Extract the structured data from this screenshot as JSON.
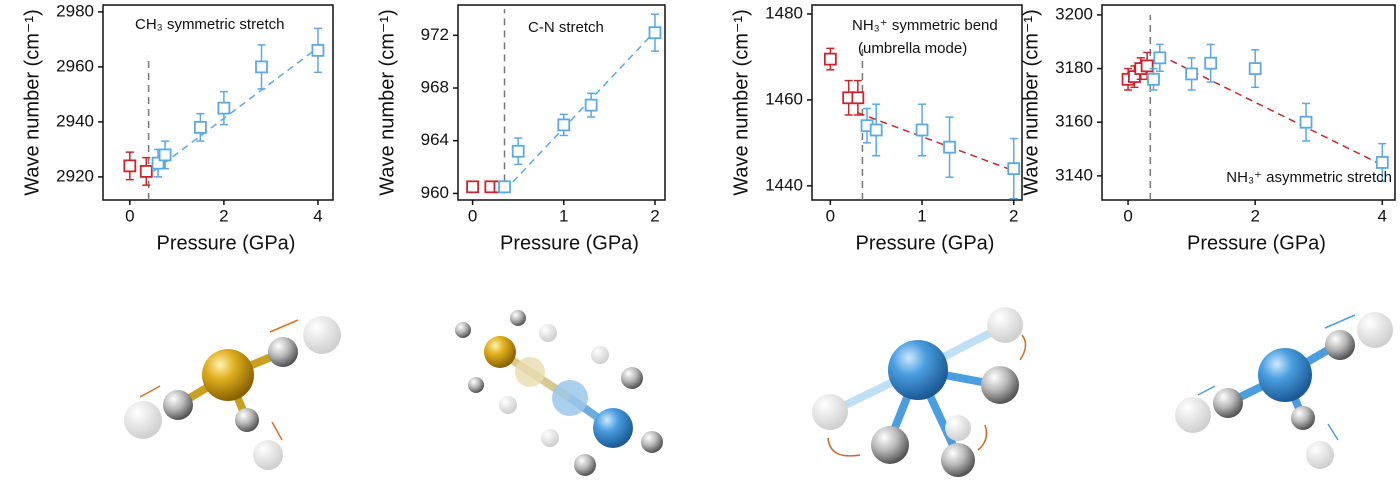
{
  "chart_data": [
    {
      "type": "scatter",
      "annotations": [
        "CH₃ symmetric stretch"
      ],
      "xlabel": "Pressure (GPa)",
      "ylabel": "Wave number (cm⁻¹)",
      "xlim": [
        -0.57,
        4.32
      ],
      "ylim": [
        2911.6,
        2982.5
      ],
      "xticks": [
        0,
        2,
        4
      ],
      "yticks": [
        2920,
        2940,
        2960,
        2980
      ],
      "series": [
        {
          "color": "#c8262c",
          "x": [
            0,
            0.35
          ],
          "values": [
            2924,
            2922
          ],
          "errors": [
            5,
            5
          ]
        },
        {
          "color": "#5aa9e6",
          "x": [
            0.6,
            0.75,
            1.5,
            2,
            2.8,
            4
          ],
          "values": [
            2925,
            2928,
            2938,
            2945,
            2960,
            2966
          ],
          "errors": [
            5,
            5,
            5,
            6,
            8,
            8
          ]
        }
      ],
      "fit": {
        "color": "#5aa9e6",
        "x": [
          0.5,
          4
        ],
        "values": [
          2922,
          2967
        ]
      },
      "vline": {
        "color": "#777777",
        "x": 0.4,
        "values": [
          2911.6,
          2964
        ]
      }
    },
    {
      "type": "scatter",
      "annotations": [
        "C-N stretch"
      ],
      "xlabel": "Pressure (GPa)",
      "ylabel": "Wave number (cm⁻¹)",
      "xlim": [
        -0.16,
        2.11
      ],
      "ylim": [
        959.5,
        974.3
      ],
      "xticks": [
        0,
        1,
        2
      ],
      "yticks": [
        960,
        964,
        968,
        972
      ],
      "series": [
        {
          "color": "#c8262c",
          "x": [
            0,
            0.2,
            0.3
          ],
          "values": [
            960.5,
            960.5,
            960.5
          ],
          "errors": [
            0.2,
            0.2,
            0.2
          ]
        },
        {
          "color": "#5aa9e6",
          "x": [
            0.35,
            0.5,
            1,
            1.3,
            2
          ],
          "values": [
            960.5,
            963.2,
            965.2,
            966.7,
            972.2
          ],
          "errors": [
            0.3,
            1,
            0.8,
            0.9,
            1.4
          ]
        }
      ],
      "fit": {
        "color": "#5aa9e6",
        "x": [
          0.35,
          2
        ],
        "values": [
          960.2,
          972.3
        ]
      },
      "vline": {
        "color": "#777777",
        "x": 0.35,
        "values": [
          960,
          974
        ]
      }
    },
    {
      "type": "scatter",
      "annotations": [
        "NH₃⁺ symmetric bend",
        "(umbrella mode)"
      ],
      "xlabel": "Pressure (GPa)",
      "ylabel": "Wave number (cm⁻¹)",
      "xlim": [
        -0.2,
        2.09
      ],
      "ylim": [
        1436.7,
        1482.1
      ],
      "xticks": [
        0,
        1,
        2
      ],
      "yticks": [
        1440,
        1460,
        1480
      ],
      "series": [
        {
          "color": "#c8262c",
          "x": [
            0,
            0.2,
            0.3
          ],
          "values": [
            1469.5,
            1460.5,
            1460.5
          ],
          "errors": [
            2.5,
            4,
            4
          ]
        },
        {
          "color": "#5aa9e6",
          "x": [
            0.4,
            0.5,
            1,
            1.3,
            2
          ],
          "values": [
            1454,
            1453,
            1453,
            1449,
            1444
          ],
          "errors": [
            4,
            6,
            6,
            7,
            7
          ]
        }
      ],
      "fit": {
        "color": "#c8262c",
        "x": [
          0.3,
          2
        ],
        "values": [
          1457,
          1443.5
        ]
      },
      "vline": {
        "color": "#777777",
        "x": 0.35,
        "values": [
          1436.7,
          1473
        ]
      }
    },
    {
      "type": "scatter",
      "annotations": [
        "NH₃⁺ asymmetric stretch"
      ],
      "xlabel": "Pressure (GPa)",
      "ylabel": "Wave number (cm⁻¹)",
      "xlim": [
        -0.41,
        4.2
      ],
      "ylim": [
        3131,
        3203.7
      ],
      "xticks": [
        0,
        2,
        4
      ],
      "yticks": [
        3140,
        3160,
        3180,
        3200
      ],
      "series": [
        {
          "color": "#c8262c",
          "x": [
            0,
            0.1,
            0.2,
            0.3
          ],
          "values": [
            3176,
            3177,
            3180,
            3181
          ],
          "errors": [
            4,
            4,
            4,
            5
          ]
        },
        {
          "color": "#5aa9e6",
          "x": [
            0.4,
            0.5,
            1,
            1.3,
            2,
            2.8,
            4
          ],
          "values": [
            3176,
            3184,
            3178,
            3182,
            3180,
            3160,
            3145
          ],
          "errors": [
            4,
            5,
            6,
            7,
            7,
            7,
            7
          ]
        }
      ],
      "fit": {
        "color": "#c8262c",
        "x": [
          0.5,
          4
        ],
        "values": [
          3185,
          3144
        ]
      },
      "vline": {
        "color": "#777777",
        "x": 0.35,
        "values": [
          3131,
          3200
        ]
      }
    }
  ]
}
